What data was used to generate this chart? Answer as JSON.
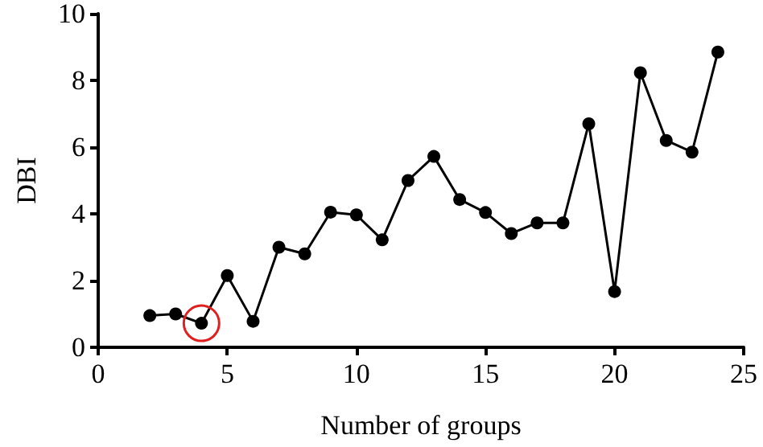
{
  "chart_data": {
    "type": "line",
    "xlabel": "Number of groups",
    "ylabel": "DBI",
    "x": [
      2,
      3,
      4,
      5,
      6,
      7,
      8,
      9,
      10,
      11,
      12,
      13,
      14,
      15,
      16,
      17,
      18,
      19,
      20,
      21,
      22,
      23,
      24
    ],
    "series": [
      {
        "color": "#000000",
        "values": [
          0.95,
          1.0,
          0.72,
          2.15,
          0.78,
          3.0,
          2.8,
          4.05,
          3.97,
          3.22,
          5.0,
          5.72,
          4.43,
          4.04,
          3.41,
          3.73,
          3.73,
          6.7,
          1.67,
          8.23,
          6.2,
          5.85,
          8.85
        ]
      }
    ],
    "xlim": [
      0,
      25
    ],
    "xticks": [
      0,
      5,
      10,
      15,
      20,
      25
    ],
    "ylim": [
      0,
      10
    ],
    "yticks": [
      0,
      2,
      4,
      6,
      8,
      10
    ],
    "grid": false,
    "marker": "circle",
    "line_style": "solid"
  }
}
